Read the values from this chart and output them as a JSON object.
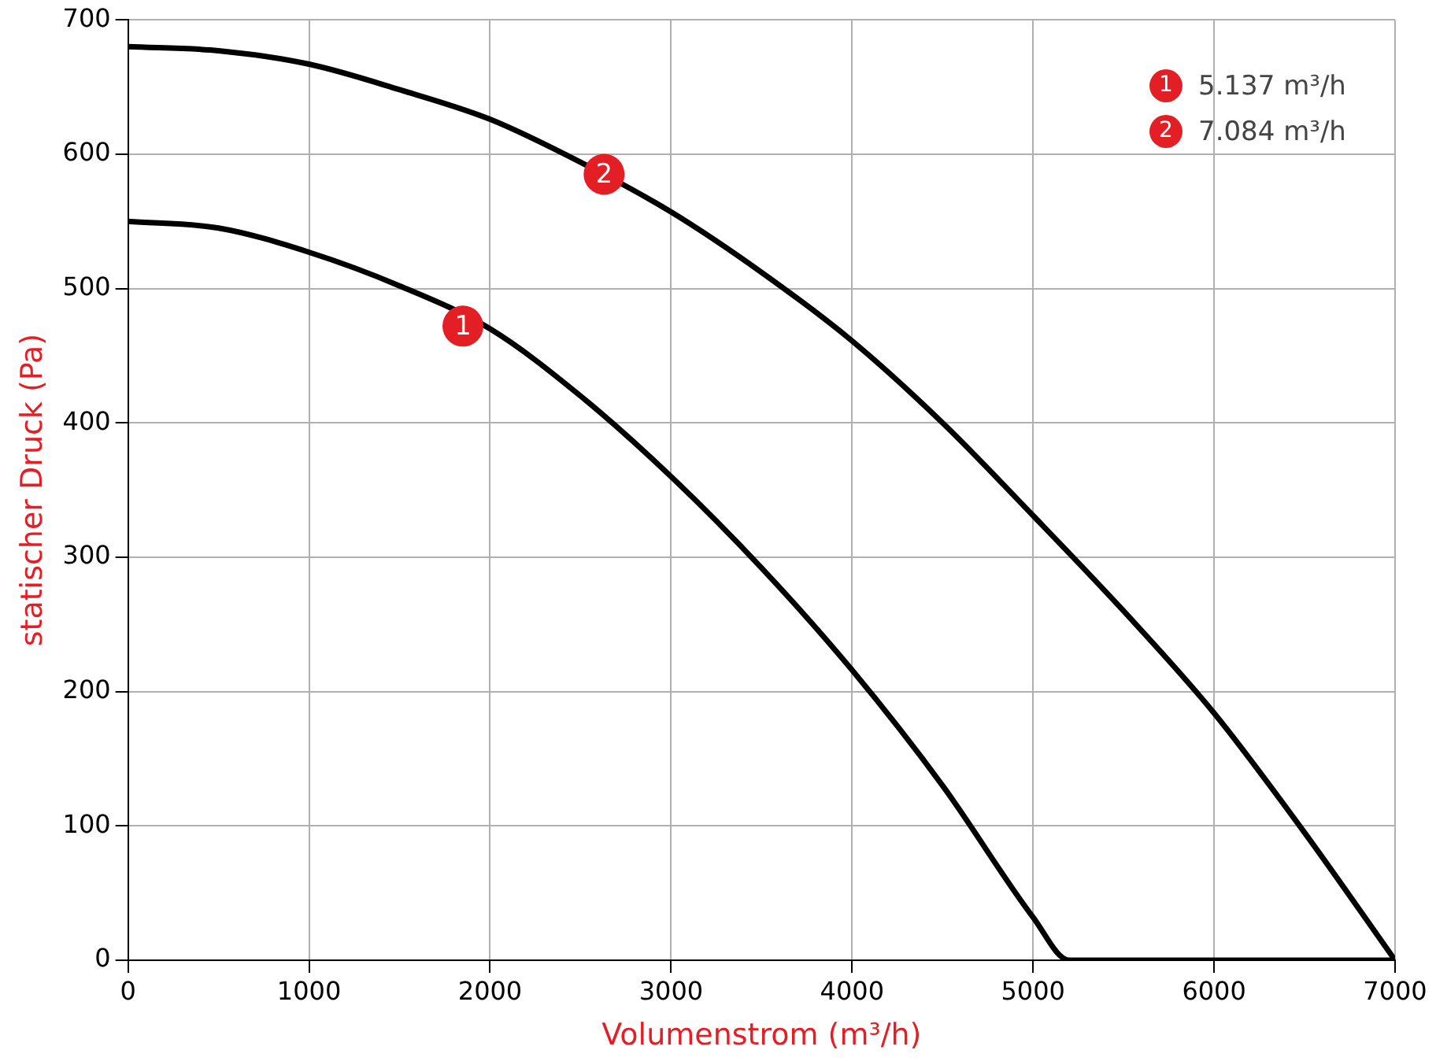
{
  "chart_data": {
    "type": "line",
    "xlabel": "Volumenstrom (m³/h)",
    "ylabel": "statischer Druck (Pa)",
    "series": [
      {
        "color": "#000000",
        "x": [
          0,
          500,
          1000,
          1500,
          2000,
          2500,
          3000,
          3500,
          4000,
          4500,
          5000,
          5200,
          7000
        ],
        "values": [
          550,
          545,
          527,
          502,
          470,
          420,
          360,
          292,
          216,
          130,
          32,
          0,
          0
        ]
      },
      {
        "color": "#000000",
        "x": [
          0,
          500,
          1000,
          1500,
          2000,
          2500,
          3000,
          3500,
          4000,
          4500,
          5000,
          5500,
          6000,
          6500,
          7000
        ],
        "values": [
          680,
          677,
          667,
          648,
          626,
          594,
          557,
          512,
          461,
          400,
          331,
          260,
          184,
          95,
          0
        ]
      }
    ],
    "annotations": [
      {
        "text": "1",
        "x": 1850,
        "y": 472
      },
      {
        "text": "2",
        "x": 2630,
        "y": 585
      },
      "5.137 m³/h",
      "7.084 m³/h"
    ],
    "xlim": [
      0,
      7000
    ],
    "xticks": [
      0,
      1000,
      2000,
      3000,
      4000,
      5000,
      6000,
      7000
    ],
    "ylim": [
      0,
      700
    ],
    "yticks": [
      0,
      100,
      200,
      300,
      400,
      500,
      600,
      700
    ],
    "grid": true,
    "legend": false,
    "marker": "none",
    "line_style": "solid"
  }
}
